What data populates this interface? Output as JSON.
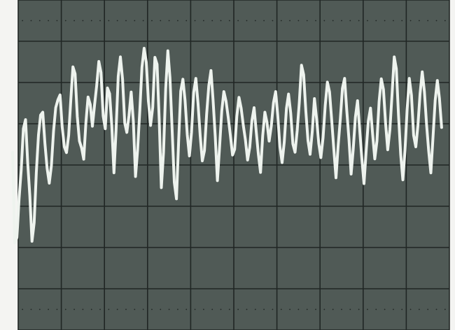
{
  "screen": {
    "background_color": "#505a56",
    "bezel_color": "#f4f4f2",
    "grid_color": "#202624",
    "trace_color": "#eef3ee",
    "graticule": {
      "major_columns": 10,
      "major_rows": 8
    }
  },
  "trace": {
    "samples": [
      0.31,
      -1.89,
      -1.76,
      -0.83,
      -0.12,
      0.88,
      1.1,
      0.05,
      -0.74,
      -1.85,
      -1.4,
      -0.18,
      0.73,
      1.21,
      1.28,
      0.52,
      -0.08,
      -0.44,
      -0.02,
      0.82,
      1.39,
      1.58,
      1.7,
      0.93,
      0.44,
      0.3,
      0.72,
      1.59,
      2.38,
      2.21,
      1.18,
      0.58,
      0.41,
      0.14,
      1.02,
      1.65,
      1.47,
      0.94,
      1.44,
      1.92,
      2.51,
      2.24,
      1.19,
      0.88,
      1.87,
      1.73,
      0.95,
      -0.19,
      0.84,
      2.15,
      2.62,
      2.08,
      1.02,
      0.79,
      1.2,
      1.77,
      1.06,
      -0.28,
      0.37,
      1.31,
      2.37,
      2.83,
      2.49,
      1.55,
      0.96,
      1.4,
      2.61,
      2.44,
      1.12,
      -0.55,
      0.31,
      1.84,
      2.77,
      2.12,
      0.86,
      -0.42,
      -0.82,
      0.58,
      1.79,
      2.08,
      1.56,
      0.74,
      0.22,
      0.79,
      1.76,
      2.1,
      1.49,
      0.71,
      0.1,
      0.35,
      1.23,
      1.92,
      2.29,
      1.57,
      0.69,
      -0.38,
      0.44,
      1.31,
      1.78,
      1.55,
      1.16,
      0.72,
      0.24,
      0.38,
      1.18,
      1.64,
      1.38,
      0.96,
      0.61,
      0.12,
      0.43,
      1.08,
      1.39,
      0.82,
      0.26,
      -0.18,
      0.71,
      1.28,
      1.03,
      0.58,
      0.95,
      1.51,
      1.78,
      1.2,
      0.44,
      0.06,
      0.56,
      1.37,
      1.72,
      1.26,
      0.51,
      0.31,
      0.84,
      1.52,
      2.42,
      2.19,
      1.31,
      0.59,
      0.26,
      0.81,
      1.61,
      1.12,
      0.52,
      0.18,
      0.66,
      1.44,
      2.01,
      1.77,
      1.1,
      0.38,
      -0.31,
      0.47,
      1.12,
      1.86,
      2.1,
      1.32,
      0.63,
      -0.22,
      0.38,
      1.16,
      1.56,
      0.84,
      0.14,
      -0.45,
      0.34,
      1.07,
      1.38,
      0.73,
      0.15,
      0.58,
      1.54,
      2.09,
      1.83,
      1.02,
      0.37,
      0.86,
      1.72,
      2.62,
      2.33,
      1.21,
      0.26,
      -0.36,
      0.36,
      1.34,
      2.1,
      1.69,
      0.72,
      0.44,
      0.95,
      1.73,
      2.26,
      1.78,
      0.98,
      0.34,
      -0.19,
      0.68,
      1.57,
      2.05,
      1.61,
      0.91
    ],
    "grid_divisions_per_sample": 0.05
  }
}
